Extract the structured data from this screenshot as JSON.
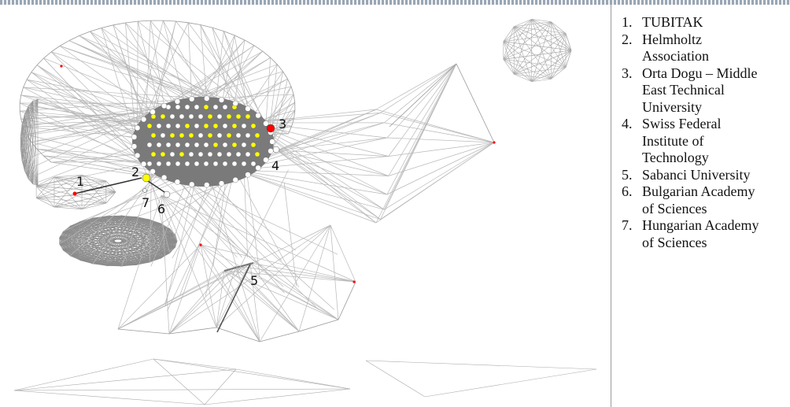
{
  "legend": {
    "items": [
      {
        "number": "1.",
        "name": "TUBITAK"
      },
      {
        "number": "2.",
        "name": "Helmholtz Association"
      },
      {
        "number": "3.",
        "name": "Orta Dogu – Middle East Technical University"
      },
      {
        "number": "4.",
        "name": "Swiss Federal Institute of Technology"
      },
      {
        "number": "5.",
        "name": "Sabanci University"
      },
      {
        "number": "6.",
        "name": "Bulgarian Academy of Sciences"
      },
      {
        "number": "7.",
        "name": "Hungarian Academy of Sciences"
      }
    ]
  },
  "network": {
    "node_labels": [
      "1",
      "2",
      "3",
      "4",
      "5",
      "6",
      "7"
    ],
    "colors": {
      "edge": "#b8b8b8",
      "cluster_fill": "#7a7a7a",
      "highlight_node": "#ffff00",
      "marked_node": "#ff0000",
      "plain_node": "#ffffff"
    }
  }
}
